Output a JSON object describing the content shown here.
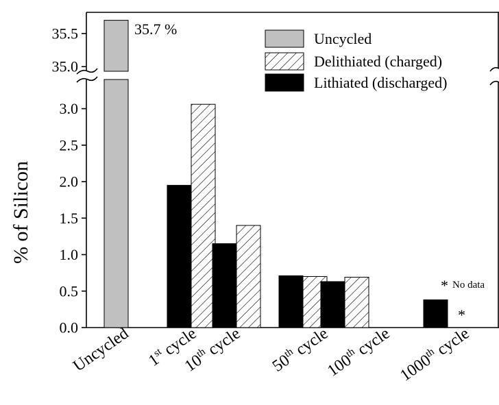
{
  "chart_data": {
    "type": "bar",
    "ylabel": "% of Silicon",
    "categories": [
      {
        "base": "Uncycled",
        "sup": "",
        "rest": ""
      },
      {
        "base": "1",
        "sup": "st",
        "rest": " cycle"
      },
      {
        "base": "10",
        "sup": "th",
        "rest": " cycle"
      },
      {
        "base": "50",
        "sup": "th",
        "rest": " cycle"
      },
      {
        "base": "100",
        "sup": "th",
        "rest": " cycle"
      },
      {
        "base": "1000",
        "sup": "th",
        "rest": " cycle"
      }
    ],
    "series": [
      {
        "name": "Uncycled",
        "fill": "#c0c0c0",
        "values": [
          35.7,
          null,
          null,
          null,
          null,
          null
        ]
      },
      {
        "name": "Delithiated (charged)",
        "fill": "hatch",
        "values": [
          null,
          3.06,
          1.4,
          0.7,
          0.69,
          null
        ]
      },
      {
        "name": "Lithiated (discharged)",
        "fill": "#000000",
        "values": [
          null,
          1.95,
          1.15,
          0.71,
          0.63,
          0.38
        ]
      }
    ],
    "y_axis_lower": {
      "range": [
        0,
        3.4
      ],
      "ticks": [
        "0.0",
        "0.5",
        "1.0",
        "1.5",
        "2.0",
        "2.5",
        "3.0"
      ]
    },
    "y_axis_upper": {
      "range": [
        34.93,
        35.82
      ],
      "ticks": [
        "35.0",
        "35.5"
      ]
    },
    "axis_break": true,
    "legend_position": "top-right",
    "annotations": {
      "uncycled_value": "35.7 %",
      "no_data_star": "*",
      "no_data_label": "No data"
    }
  }
}
